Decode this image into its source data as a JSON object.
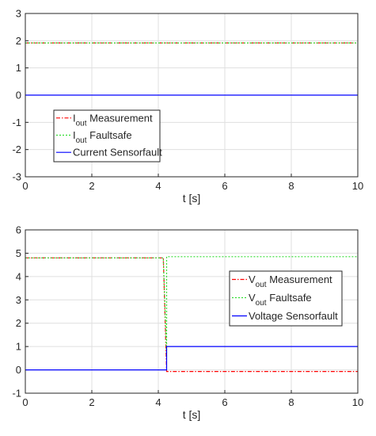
{
  "chart_data": [
    {
      "type": "line",
      "xlabel": "t [s]",
      "ylabel": "",
      "xlim": [
        0,
        10
      ],
      "ylim": [
        -3,
        3
      ],
      "xticks": [
        "0",
        "2",
        "4",
        "6",
        "8",
        "10"
      ],
      "yticks": [
        "-3",
        "-2",
        "-1",
        "0",
        "1",
        "2",
        "3"
      ],
      "grid": true,
      "legend_position": "bottom-left",
      "series": [
        {
          "name": "I",
          "name_sub": "out",
          "name_rest": " Measurement",
          "color": "#ff0000",
          "style": "dashdot",
          "x": [
            0,
            10
          ],
          "y": [
            1.92,
            1.92
          ]
        },
        {
          "name": "I",
          "name_sub": "out",
          "name_rest": " Faultsafe",
          "color": "#33dd33",
          "style": "dotted",
          "x": [
            0,
            10
          ],
          "y": [
            1.92,
            1.92
          ]
        },
        {
          "name": "Current Sensorfault",
          "name_sub": "",
          "name_rest": "",
          "color": "#0000ff",
          "style": "solid",
          "x": [
            0,
            10
          ],
          "y": [
            0,
            0
          ]
        }
      ]
    },
    {
      "type": "line",
      "xlabel": "t [s]",
      "ylabel": "",
      "xlim": [
        0,
        10
      ],
      "ylim": [
        -1,
        6
      ],
      "xticks": [
        "0",
        "2",
        "4",
        "6",
        "8",
        "10"
      ],
      "yticks": [
        "-1",
        "0",
        "1",
        "2",
        "3",
        "4",
        "5",
        "6"
      ],
      "grid": true,
      "legend_position": "right",
      "series": [
        {
          "name": "V",
          "name_sub": "out",
          "name_rest": " Measurement",
          "color": "#ff0000",
          "style": "dashdot",
          "x": [
            0,
            4.15,
            4.25,
            10
          ],
          "y": [
            4.8,
            4.8,
            -0.07,
            -0.07
          ]
        },
        {
          "name": "V",
          "name_sub": "out",
          "name_rest": " Faultsafe",
          "color": "#33dd33",
          "style": "dotted",
          "x": [
            0,
            4.15,
            4.25,
            4.25,
            10
          ],
          "y": [
            4.8,
            4.8,
            0.55,
            4.85,
            4.85
          ]
        },
        {
          "name": "Voltage Sensorfault",
          "name_sub": "",
          "name_rest": "",
          "color": "#0000ff",
          "style": "solid",
          "x": [
            0,
            4.25,
            4.25,
            10
          ],
          "y": [
            0,
            0,
            1,
            1
          ]
        }
      ]
    }
  ]
}
